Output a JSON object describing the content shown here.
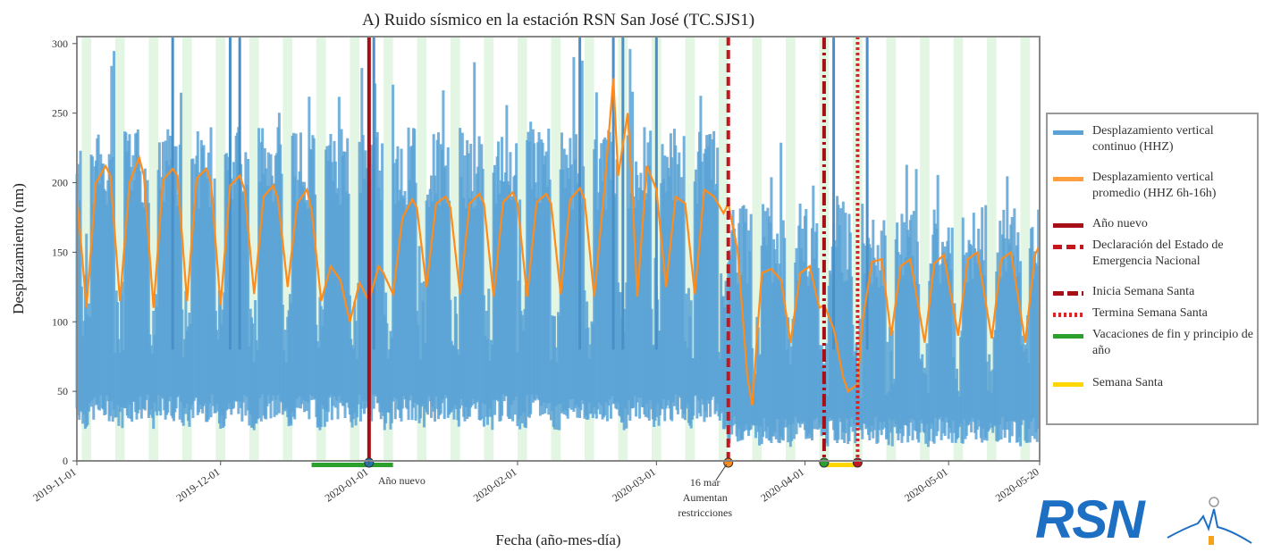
{
  "chart_data": {
    "type": "line",
    "title": "A) Ruido sísmico en la estación RSN San José (TC.SJS1)",
    "xlabel": "Fecha (año-mes-día)",
    "ylabel": "Desplazamiento (nm)",
    "ylim": [
      0,
      305
    ],
    "xlim": [
      "2019-11-01",
      "2020-05-20"
    ],
    "yticks": [
      0,
      50,
      100,
      150,
      200,
      250,
      300
    ],
    "xticks": [
      "2019-11-01",
      "2019-12-01",
      "2020-01-01",
      "2020-02-01",
      "2020-03-01",
      "2020-04-01",
      "2020-05-01",
      "2020-05-20"
    ],
    "grid": false,
    "legend_position": "right",
    "weekend_shading": "#e3f6e3",
    "series": [
      {
        "name": "Desplazamiento vertical continuo (HHZ)",
        "color": "#5ba3d6",
        "kind": "band",
        "weekday_range": [
          28,
          240
        ],
        "weekend_range": [
          22,
          130
        ],
        "post_emergency_range": [
          12,
          185
        ]
      },
      {
        "name": "Desplazamiento vertical promedio (HHZ 6h-16h)",
        "color": "#ff8c1a",
        "kind": "line",
        "points": [
          [
            "2019-11-01",
            192
          ],
          [
            "2019-11-03",
            110
          ],
          [
            "2019-11-05",
            200
          ],
          [
            "2019-11-07",
            212
          ],
          [
            "2019-11-08",
            205
          ],
          [
            "2019-11-10",
            115
          ],
          [
            "2019-11-12",
            200
          ],
          [
            "2019-11-14",
            218
          ],
          [
            "2019-11-15",
            205
          ],
          [
            "2019-11-17",
            110
          ],
          [
            "2019-11-19",
            202
          ],
          [
            "2019-11-21",
            210
          ],
          [
            "2019-11-22",
            205
          ],
          [
            "2019-11-24",
            115
          ],
          [
            "2019-11-26",
            203
          ],
          [
            "2019-11-28",
            210
          ],
          [
            "2019-11-29",
            200
          ],
          [
            "2019-12-01",
            112
          ],
          [
            "2019-12-03",
            198
          ],
          [
            "2019-12-05",
            205
          ],
          [
            "2019-12-06",
            195
          ],
          [
            "2019-12-08",
            120
          ],
          [
            "2019-12-10",
            190
          ],
          [
            "2019-12-12",
            198
          ],
          [
            "2019-12-13",
            188
          ],
          [
            "2019-12-15",
            125
          ],
          [
            "2019-12-17",
            185
          ],
          [
            "2019-12-19",
            195
          ],
          [
            "2019-12-20",
            180
          ],
          [
            "2019-12-22",
            115
          ],
          [
            "2019-12-24",
            140
          ],
          [
            "2019-12-26",
            130
          ],
          [
            "2019-12-28",
            100
          ],
          [
            "2019-12-30",
            128
          ],
          [
            "2020-01-01",
            115
          ],
          [
            "2020-01-03",
            140
          ],
          [
            "2020-01-04",
            135
          ],
          [
            "2020-01-06",
            120
          ],
          [
            "2020-01-08",
            175
          ],
          [
            "2020-01-10",
            188
          ],
          [
            "2020-01-11",
            182
          ],
          [
            "2020-01-13",
            125
          ],
          [
            "2020-01-15",
            185
          ],
          [
            "2020-01-17",
            190
          ],
          [
            "2020-01-18",
            182
          ],
          [
            "2020-01-20",
            120
          ],
          [
            "2020-01-22",
            185
          ],
          [
            "2020-01-24",
            192
          ],
          [
            "2020-01-25",
            185
          ],
          [
            "2020-01-27",
            118
          ],
          [
            "2020-01-29",
            186
          ],
          [
            "2020-01-31",
            193
          ],
          [
            "2020-02-01",
            185
          ],
          [
            "2020-02-03",
            118
          ],
          [
            "2020-02-05",
            186
          ],
          [
            "2020-02-07",
            192
          ],
          [
            "2020-02-08",
            185
          ],
          [
            "2020-02-10",
            120
          ],
          [
            "2020-02-12",
            188
          ],
          [
            "2020-02-14",
            196
          ],
          [
            "2020-02-15",
            188
          ],
          [
            "2020-02-17",
            118
          ],
          [
            "2020-02-19",
            190
          ],
          [
            "2020-02-21",
            275
          ],
          [
            "2020-02-22",
            205
          ],
          [
            "2020-02-24",
            250
          ],
          [
            "2020-02-25",
            190
          ],
          [
            "2020-02-26",
            118
          ],
          [
            "2020-02-28",
            212
          ],
          [
            "2020-03-01",
            195
          ],
          [
            "2020-03-03",
            125
          ],
          [
            "2020-03-05",
            190
          ],
          [
            "2020-03-07",
            185
          ],
          [
            "2020-03-09",
            120
          ],
          [
            "2020-03-11",
            195
          ],
          [
            "2020-03-13",
            190
          ],
          [
            "2020-03-15",
            178
          ],
          [
            "2020-03-16",
            185
          ],
          [
            "2020-03-18",
            150
          ],
          [
            "2020-03-20",
            60
          ],
          [
            "2020-03-21",
            40
          ],
          [
            "2020-03-22",
            90
          ],
          [
            "2020-03-23",
            135
          ],
          [
            "2020-03-25",
            138
          ],
          [
            "2020-03-27",
            130
          ],
          [
            "2020-03-29",
            85
          ],
          [
            "2020-03-31",
            135
          ],
          [
            "2020-04-02",
            140
          ],
          [
            "2020-04-04",
            110
          ],
          [
            "2020-04-05",
            112
          ],
          [
            "2020-04-07",
            95
          ],
          [
            "2020-04-09",
            60
          ],
          [
            "2020-04-10",
            50
          ],
          [
            "2020-04-12",
            55
          ],
          [
            "2020-04-13",
            100
          ],
          [
            "2020-04-15",
            143
          ],
          [
            "2020-04-17",
            145
          ],
          [
            "2020-04-19",
            90
          ],
          [
            "2020-04-21",
            140
          ],
          [
            "2020-04-23",
            145
          ],
          [
            "2020-04-26",
            85
          ],
          [
            "2020-04-28",
            142
          ],
          [
            "2020-04-30",
            148
          ],
          [
            "2020-05-03",
            90
          ],
          [
            "2020-05-05",
            145
          ],
          [
            "2020-05-07",
            150
          ],
          [
            "2020-05-10",
            88
          ],
          [
            "2020-05-12",
            145
          ],
          [
            "2020-05-14",
            150
          ],
          [
            "2020-05-17",
            85
          ],
          [
            "2020-05-19",
            148
          ],
          [
            "2020-05-20",
            155
          ]
        ]
      },
      {
        "name": "Año nuevo",
        "color": "#a50f15",
        "kind": "vline",
        "date": "2020-01-01",
        "style": "solid"
      },
      {
        "name": "Declaración del Estado de Emergencia Nacional",
        "color": "#c4161c",
        "kind": "vline",
        "date": "2020-03-16",
        "style": "dashed"
      },
      {
        "name": "Inicia Semana Santa",
        "color": "#a50f15",
        "kind": "vline",
        "date": "2020-04-05",
        "style": "dashdot"
      },
      {
        "name": "Termina Semana Santa",
        "color": "#d62728",
        "kind": "vline",
        "date": "2020-04-12",
        "style": "dotted"
      },
      {
        "name": "Vacaciones de fin y principio de año",
        "color": "#2ca02c",
        "kind": "span",
        "start": "2019-12-20",
        "end": "2020-01-06"
      },
      {
        "name": "Semana Santa",
        "color": "#ffd700",
        "kind": "span",
        "start": "2020-04-05",
        "end": "2020-04-12"
      }
    ],
    "annotations": [
      {
        "text": "Año nuevo",
        "date": "2020-01-01"
      },
      {
        "text": "16 mar / Aumentan restricciones",
        "date": "2020-03-16"
      }
    ]
  },
  "legend": [
    {
      "label": "Desplazamiento vertical continuo (HHZ)",
      "color": "#5ba3d6",
      "style": "solid"
    },
    {
      "label": "Desplazamiento vertical promedio (HHZ 6h-16h)",
      "color": "#ff9f40",
      "style": "solid"
    },
    {
      "label": "Año nuevo",
      "color": "#a50f15",
      "style": "solid"
    },
    {
      "label": "Declaración del Estado de Emergencia Nacional",
      "color": "#c4161c",
      "style": "dashed"
    },
    {
      "label": "Inicia Semana Santa",
      "color": "#a50f15",
      "style": "dashdot"
    },
    {
      "label": "Termina Semana Santa",
      "color": "#d62728",
      "style": "dotted"
    },
    {
      "label": "Vacaciones de fin y principio de año",
      "color": "#2ca02c",
      "style": "solid"
    },
    {
      "label": "Semana Santa",
      "color": "#ffd700",
      "style": "solid"
    }
  ],
  "logo": {
    "text": "RSN"
  }
}
